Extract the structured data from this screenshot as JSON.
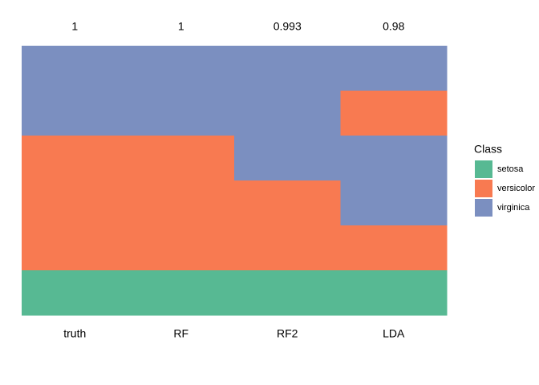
{
  "chart_data": {
    "type": "tile",
    "categories": [
      "truth",
      "RF",
      "RF2",
      "LDA"
    ],
    "accuracy": [
      1,
      1,
      0.993,
      0.98
    ],
    "legend_title": "Class",
    "classes": [
      {
        "name": "setosa",
        "color": "#57b993"
      },
      {
        "name": "versicolor",
        "color": "#f87a51"
      },
      {
        "name": "virginica",
        "color": "#7b8fc0"
      }
    ],
    "columns": [
      [
        "virginica",
        "virginica",
        "versicolor",
        "versicolor",
        "versicolor",
        "setosa"
      ],
      [
        "virginica",
        "virginica",
        "versicolor",
        "versicolor",
        "versicolor",
        "setosa"
      ],
      [
        "virginica",
        "virginica",
        "virginica",
        "versicolor",
        "versicolor",
        "setosa"
      ],
      [
        "virginica",
        "versicolor",
        "virginica",
        "virginica",
        "versicolor",
        "setosa"
      ]
    ]
  }
}
